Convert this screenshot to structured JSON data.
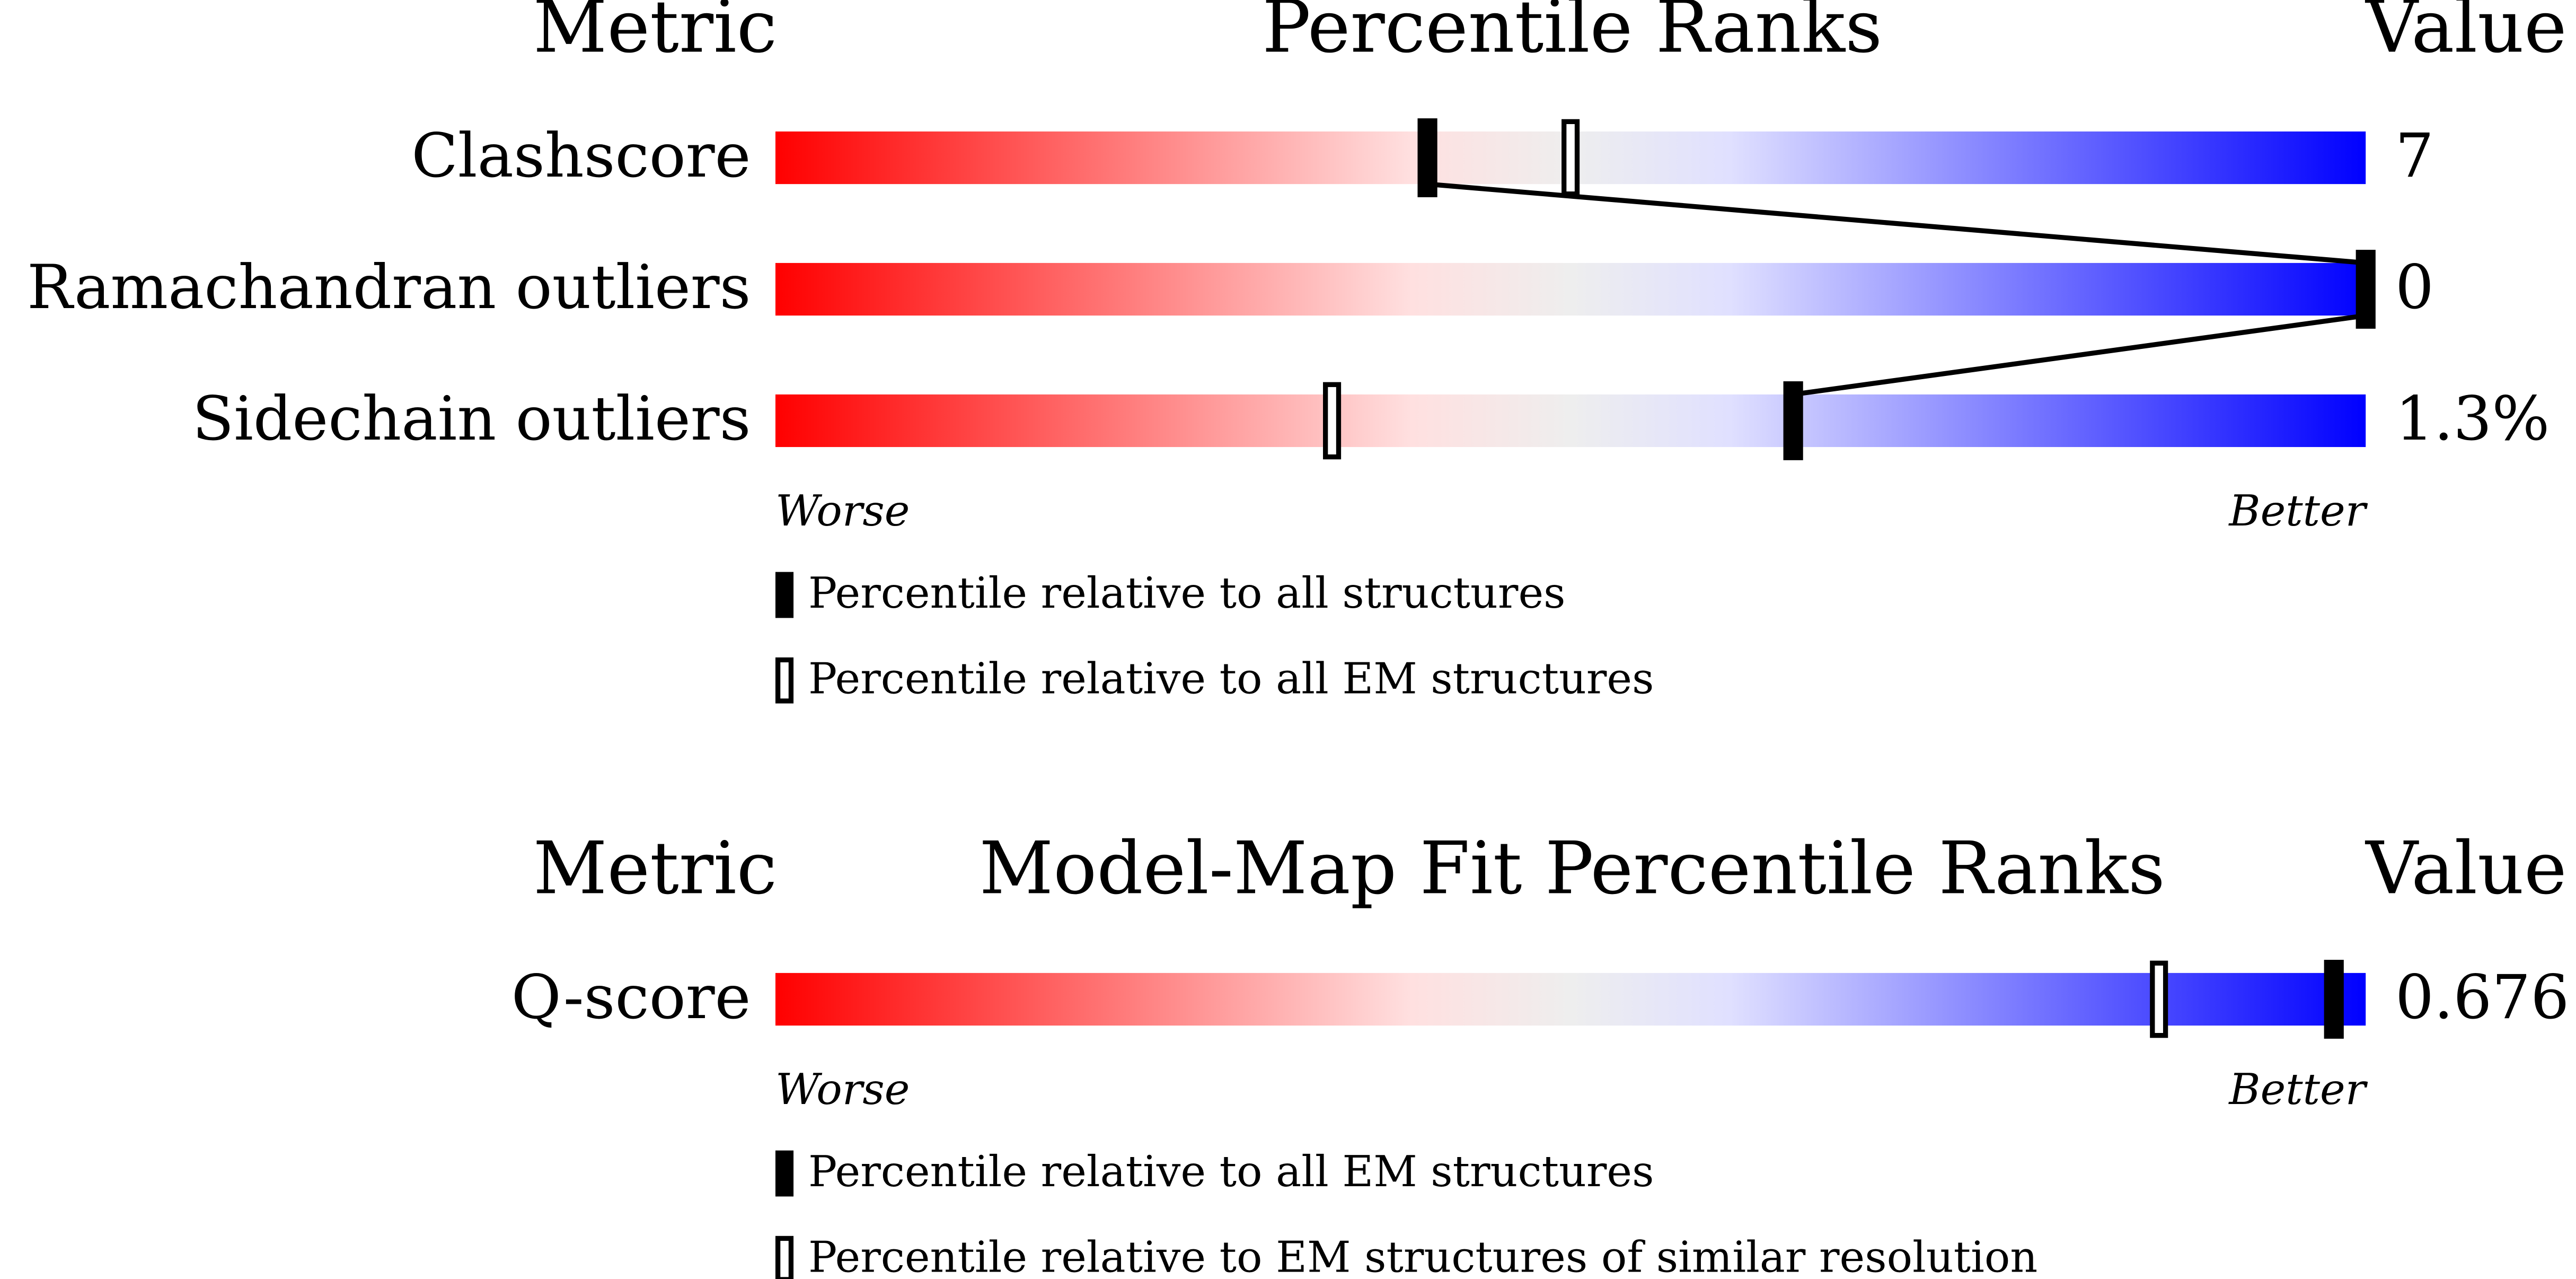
{
  "sections": [
    {
      "headers": {
        "metric": "Metric",
        "title": "Percentile Ranks",
        "value": "Value"
      },
      "rows": [
        {
          "label": "Clashscore",
          "value": "7",
          "percentile_all": 41,
          "percentile_em": 50
        },
        {
          "label": "Ramachandran outliers",
          "value": "0",
          "percentile_all": 100,
          "percentile_em": null
        },
        {
          "label": "Sidechain outliers",
          "value": "1.3%",
          "percentile_all": 64,
          "percentile_em": 35
        }
      ],
      "worse": "Worse",
      "better": "Better",
      "legend": {
        "filled": "Percentile relative to all structures",
        "open": "Percentile relative to all EM structures"
      }
    },
    {
      "headers": {
        "metric": "Metric",
        "title": "Model-Map Fit Percentile Ranks",
        "value": "Value"
      },
      "rows": [
        {
          "label": "Q-score",
          "value": "0.676",
          "percentile_all": 98,
          "percentile_em": 87
        }
      ],
      "worse": "Worse",
      "better": "Better",
      "legend": {
        "filled": "Percentile relative to all EM structures",
        "open": "Percentile relative to EM structures of similar resolution"
      }
    }
  ]
}
